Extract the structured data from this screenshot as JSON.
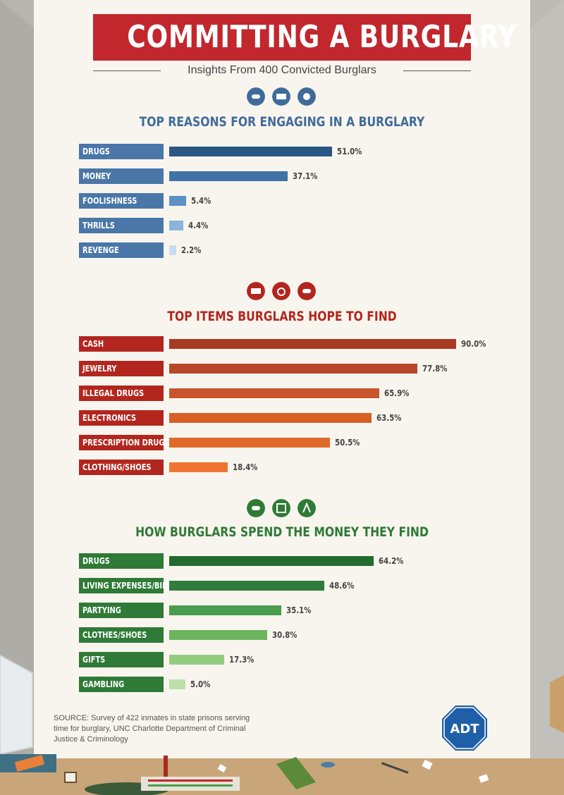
{
  "title": "COMMITTING A BURGLARY",
  "subtitle": "Insights From 400 Convicted Burglars",
  "chart_data": [
    {
      "type": "bar",
      "title": "TOP REASONS FOR ENGAGING IN A BURGLARY",
      "categories": [
        "DRUGS",
        "MONEY",
        "FOOLISHNESS",
        "THRILLS",
        "REVENGE"
      ],
      "values": [
        51.0,
        37.1,
        5.4,
        4.4,
        2.2
      ],
      "value_labels": [
        "51.0%",
        "37.1%",
        "5.4%",
        "4.4%",
        "2.2%"
      ],
      "xlim": [
        0,
        100
      ],
      "label_color": "#4a76a8",
      "title_color": "#3f6b9a",
      "bar_colors": [
        "#2a5783",
        "#3f72a6",
        "#5d90c3",
        "#8ab4d9",
        "#c6dcef"
      ],
      "icons": [
        "pills-icon",
        "money-icon",
        "splash-icon"
      ]
    },
    {
      "type": "bar",
      "title": "TOP ITEMS BURGLARS HOPE TO FIND",
      "categories": [
        "CASH",
        "JEWELRY",
        "ILLEGAL DRUGS",
        "ELECTRONICS",
        "PRESCRIPTION DRUGS",
        "CLOTHING/SHOES"
      ],
      "values": [
        90.0,
        77.8,
        65.9,
        63.5,
        50.5,
        18.4
      ],
      "value_labels": [
        "90.0%",
        "77.8%",
        "65.9%",
        "63.5%",
        "50.5%",
        "18.4%"
      ],
      "xlim": [
        0,
        100
      ],
      "label_color": "#b3261e",
      "title_color": "#b3261e",
      "bar_colors": [
        "#a63a22",
        "#b8472a",
        "#c9552c",
        "#d65f28",
        "#e06a29",
        "#ee7430"
      ],
      "icons": [
        "cash-icon",
        "ring-icon",
        "pills-icon"
      ]
    },
    {
      "type": "bar",
      "title": "HOW BURGLARS SPEND THE MONEY THEY FIND",
      "categories": [
        "DRUGS",
        "LIVING EXPENSES/BILLS",
        "PARTYING",
        "CLOTHES/SHOES",
        "GIFTS",
        "GAMBLING"
      ],
      "values": [
        64.2,
        48.6,
        35.1,
        30.8,
        17.3,
        5.0
      ],
      "value_labels": [
        "64.2%",
        "48.6%",
        "35.1%",
        "30.8%",
        "17.3%",
        "5.0%"
      ],
      "xlim": [
        0,
        100
      ],
      "label_color": "#2e7a36",
      "title_color": "#2e7a36",
      "bar_colors": [
        "#236b2f",
        "#2e7d3a",
        "#4a9c4e",
        "#6cb45e",
        "#93cb7f",
        "#bddfab"
      ],
      "icons": [
        "pills-icon",
        "safe-icon",
        "party-icon"
      ]
    }
  ],
  "source": "SOURCE: Survey of 422 inmates in state prisons serving time for burglary, UNC Charlotte Department of Criminal Justice & Criminology",
  "logo": "ADT"
}
